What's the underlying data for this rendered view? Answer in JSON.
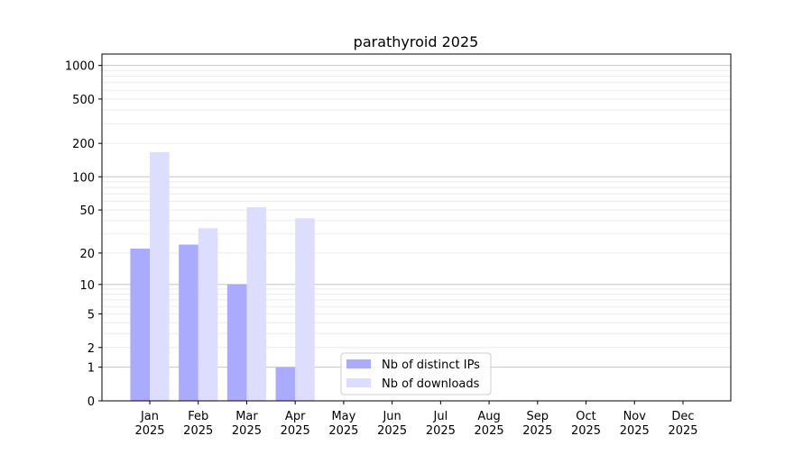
{
  "chart_data": {
    "type": "bar",
    "title": "parathyroid 2025",
    "xlabel": "",
    "ylabel": "",
    "yscale": "log(1+y)",
    "ylim": [
      0,
      1300
    ],
    "yticks": [
      0,
      1,
      2,
      5,
      10,
      20,
      50,
      100,
      200,
      500,
      1000
    ],
    "categories": [
      "Jan\n2025",
      "Feb\n2025",
      "Mar\n2025",
      "Apr\n2025",
      "May\n2025",
      "Jun\n2025",
      "Jul\n2025",
      "Aug\n2025",
      "Sep\n2025",
      "Oct\n2025",
      "Nov\n2025",
      "Dec\n2025"
    ],
    "series": [
      {
        "name": "Nb of distinct IPs",
        "color": "#aaaaff",
        "values": [
          22,
          24,
          10,
          1,
          0,
          0,
          0,
          0,
          0,
          0,
          0,
          0
        ]
      },
      {
        "name": "Nb of downloads",
        "color": "#ddddff",
        "values": [
          167,
          34,
          53,
          42,
          0,
          0,
          0,
          0,
          0,
          0,
          0,
          0
        ]
      }
    ],
    "grid": true,
    "legend": "lower-center"
  }
}
